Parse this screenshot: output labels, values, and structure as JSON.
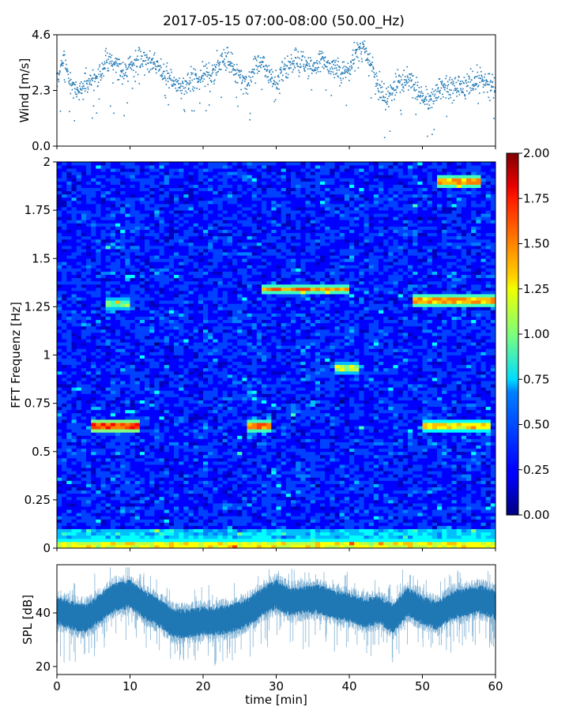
{
  "chart_data": [
    {
      "type": "scatter",
      "panel": "wind",
      "title": "2017-05-15 07:00-08:00 (50.00_Hz)",
      "ylabel": "Wind [m/s]",
      "xlim": [
        0,
        60
      ],
      "ylim": [
        0.0,
        4.6
      ],
      "yticks": [
        "0.0",
        "2.3",
        "4.6"
      ],
      "color": "#1f77b4",
      "series": [
        {
          "x": [
            0,
            1,
            2,
            3,
            4,
            5,
            6,
            7,
            8,
            9,
            10,
            11,
            12,
            13,
            14,
            15,
            16,
            17,
            18,
            19,
            20,
            21,
            22,
            23,
            24,
            25,
            26,
            27,
            28,
            29,
            30,
            31,
            32,
            33,
            34,
            35,
            36,
            37,
            38,
            39,
            40,
            41,
            42,
            43,
            44,
            45,
            46,
            47,
            48,
            49,
            50,
            51,
            52,
            53,
            54,
            55,
            56,
            57,
            58,
            59,
            60
          ],
          "values": [
            2.7,
            3.7,
            2.4,
            2.3,
            2.6,
            2.8,
            3.0,
            3.6,
            3.4,
            3.1,
            3.3,
            3.5,
            3.6,
            3.5,
            3.2,
            2.9,
            2.6,
            2.4,
            2.6,
            2.8,
            3.0,
            2.9,
            3.3,
            3.7,
            3.3,
            2.8,
            2.5,
            3.2,
            3.5,
            2.9,
            2.6,
            3.1,
            3.4,
            3.6,
            3.3,
            3.1,
            3.5,
            3.4,
            3.2,
            2.9,
            3.2,
            3.8,
            3.9,
            3.4,
            2.4,
            2.0,
            2.3,
            2.6,
            2.8,
            2.4,
            2.0,
            1.8,
            2.3,
            2.5,
            2.3,
            2.4,
            2.5,
            2.7,
            2.8,
            2.6,
            2.4
          ]
        }
      ]
    },
    {
      "type": "heatmap",
      "panel": "spectrogram",
      "ylabel": "FFT Frequenz [Hz]",
      "xlim": [
        0,
        60
      ],
      "ylim": [
        0,
        2
      ],
      "yticks": [
        "0",
        "0.25",
        "0.5",
        "0.75",
        "1",
        "1.25",
        "1.5",
        "1.75",
        "2"
      ],
      "colormap": "jet",
      "clim": [
        0.0,
        2.0
      ],
      "colorbar_ticks": [
        "0.00",
        "0.25",
        "0.50",
        "0.75",
        "1.00",
        "1.25",
        "1.50",
        "1.75",
        "2.00"
      ],
      "background_level": 0.3,
      "features": [
        {
          "t0": 5,
          "t1": 11,
          "freq": 0.63,
          "level": 1.6
        },
        {
          "t0": 26,
          "t1": 29,
          "freq": 0.63,
          "level": 1.5
        },
        {
          "t0": 50,
          "t1": 59,
          "freq": 0.63,
          "level": 1.3
        },
        {
          "t0": 28,
          "t1": 40,
          "freq": 1.34,
          "level": 1.5
        },
        {
          "t0": 49,
          "t1": 60,
          "freq": 1.28,
          "level": 1.4
        },
        {
          "t0": 52,
          "t1": 58,
          "freq": 1.9,
          "level": 1.4
        },
        {
          "t0": 0,
          "t1": 60,
          "freq": 0.02,
          "level": 1.2
        },
        {
          "t0": 7,
          "t1": 10,
          "freq": 1.27,
          "level": 1.0
        },
        {
          "t0": 38,
          "t1": 41,
          "freq": 0.93,
          "level": 1.1
        }
      ]
    },
    {
      "type": "area",
      "panel": "spl",
      "xlabel": "time [min]",
      "ylabel": "SPL [dB]",
      "xlim": [
        0,
        60
      ],
      "xticks": [
        "0",
        "10",
        "20",
        "30",
        "40",
        "50",
        "60"
      ],
      "ylim": [
        17,
        58
      ],
      "yticks": [
        "20",
        "40"
      ],
      "color": "#1f77b4",
      "series": [
        {
          "x": [
            0,
            2,
            4,
            6,
            8,
            10,
            12,
            14,
            16,
            18,
            20,
            22,
            24,
            26,
            28,
            30,
            32,
            34,
            36,
            38,
            40,
            42,
            44,
            46,
            48,
            50,
            52,
            54,
            56,
            58,
            60
          ],
          "values": [
            41,
            39,
            38,
            42,
            46,
            47,
            43,
            40,
            36,
            36,
            37,
            37,
            38,
            40,
            44,
            47,
            44,
            45,
            45,
            43,
            42,
            40,
            41,
            38,
            44,
            41,
            39,
            43,
            44,
            45,
            43
          ]
        }
      ]
    }
  ]
}
